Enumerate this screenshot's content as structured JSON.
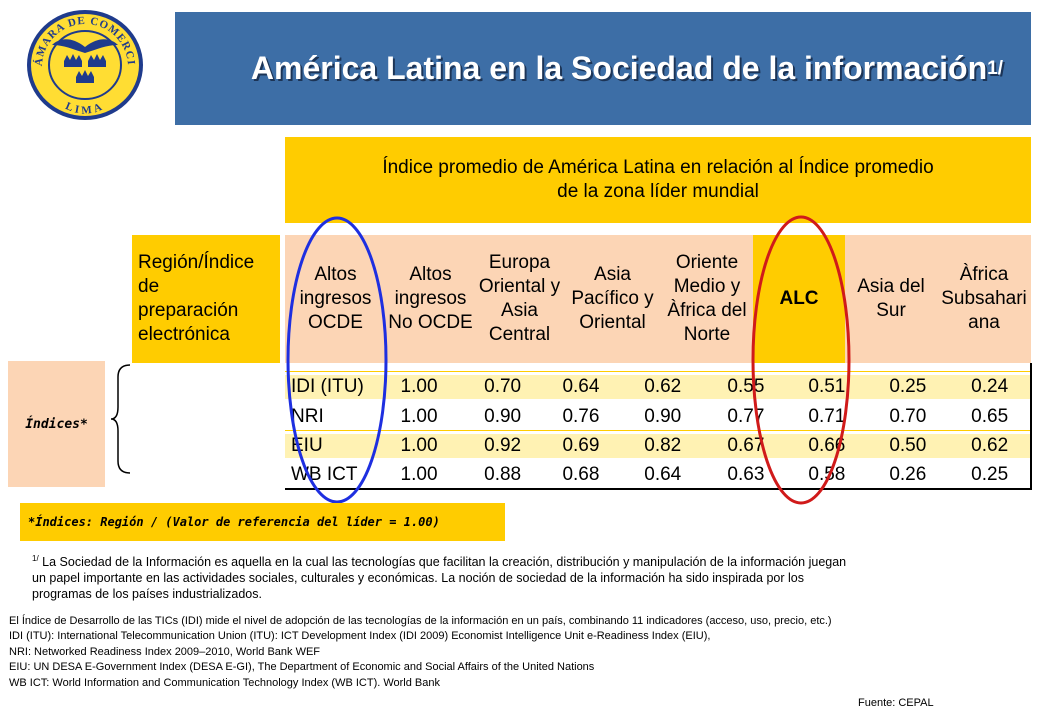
{
  "logo": {
    "text_top": "CÁMARA DE COMERCIO",
    "text_bottom": "LIMA",
    "colors": {
      "ring": "#1f3b8c",
      "fill": "#ffdd33",
      "crowns": "#1f3b8c"
    }
  },
  "title": {
    "text": "América Latina en la Sociedad de la información",
    "sup": "1/"
  },
  "header": {
    "line1": "Índice promedio de América Latina en relación al Índice promedio",
    "line2": "de la zona líder mundial"
  },
  "table": {
    "row_header_label": [
      "Región/Índice de",
      "preparación",
      "electrónica"
    ],
    "columns": [
      {
        "label": [
          "Altos",
          "ingresos",
          "OCDE"
        ]
      },
      {
        "label": [
          "Altos",
          "ingresos",
          "No OCDE"
        ]
      },
      {
        "label": [
          "Europa",
          "Oriental y",
          "Asia",
          "Central"
        ]
      },
      {
        "label": [
          "Asia",
          "Pacífico y",
          "Oriental"
        ]
      },
      {
        "label": [
          "Oriente",
          "Medio y",
          "Àfrica del",
          "Norte"
        ]
      },
      {
        "label": [
          "ALC"
        ]
      },
      {
        "label": [
          "Asia del",
          "Sur"
        ]
      },
      {
        "label": [
          "Àfrica",
          "Subsahari",
          "ana"
        ]
      }
    ],
    "rows": [
      {
        "name": "IDI (ITU)",
        "values": [
          "1.00",
          "0.70",
          "0.64",
          "0.62",
          "0.55",
          "0.51",
          "0.25",
          "0.24"
        ]
      },
      {
        "name": "NRI",
        "values": [
          "1.00",
          "0.90",
          "0.76",
          "0.90",
          "0.77",
          "0.71",
          "0.70",
          "0.65"
        ]
      },
      {
        "name": "EIU",
        "values": [
          "1.00",
          "0.92",
          "0.69",
          "0.82",
          "0.67",
          "0.66",
          "0.50",
          "0.62"
        ]
      },
      {
        "name": "WB ICT",
        "values": [
          "1.00",
          "0.88",
          "0.68",
          "0.64",
          "0.63",
          "0.58",
          "0.26",
          "0.25"
        ]
      }
    ]
  },
  "indices_label": "Índices*",
  "indices_note": "*Índices: Región / (Valor de referencia del líder = 1.00)",
  "footnote": {
    "sup": "1/",
    "line1": "La Sociedad de la Información es aquella en la cual las tecnologías que facilitan la creación, distribución y manipulación de la información juegan",
    "line2": "un papel importante en las actividades sociales, culturales y económicas. La noción de sociedad de la información ha sido inspirada por los",
    "line3": "programas de los países industrializados."
  },
  "definitions": [
    "El Índice de Desarrollo de las TICs  (IDI)  mide el nivel de adopción de las tecnologías de la información en un país,  combinando 11 indicadores (acceso, uso, precio, etc.)",
    "IDI (ITU):  International Telecommunication Union (ITU):  ICT  Development Index (IDI 2009)  Economist Intelligence Unit e-Readiness Index (EIU),",
    "NRI:  Networked Readiness Index 2009–2010,  World Bank WEF",
    "EIU: UN DESA E-Government Index (DESA E-GI), The Department of Economic and Social Affairs of the United Nations",
    "WB ICT:  World Information and Communication Technology Index (WB ICT).  World Bank"
  ],
  "source": "Fuente: CEPAL",
  "highlight_colors": {
    "ocde_oval": "#1e2fe0",
    "alc_oval": "#d01a1a"
  }
}
